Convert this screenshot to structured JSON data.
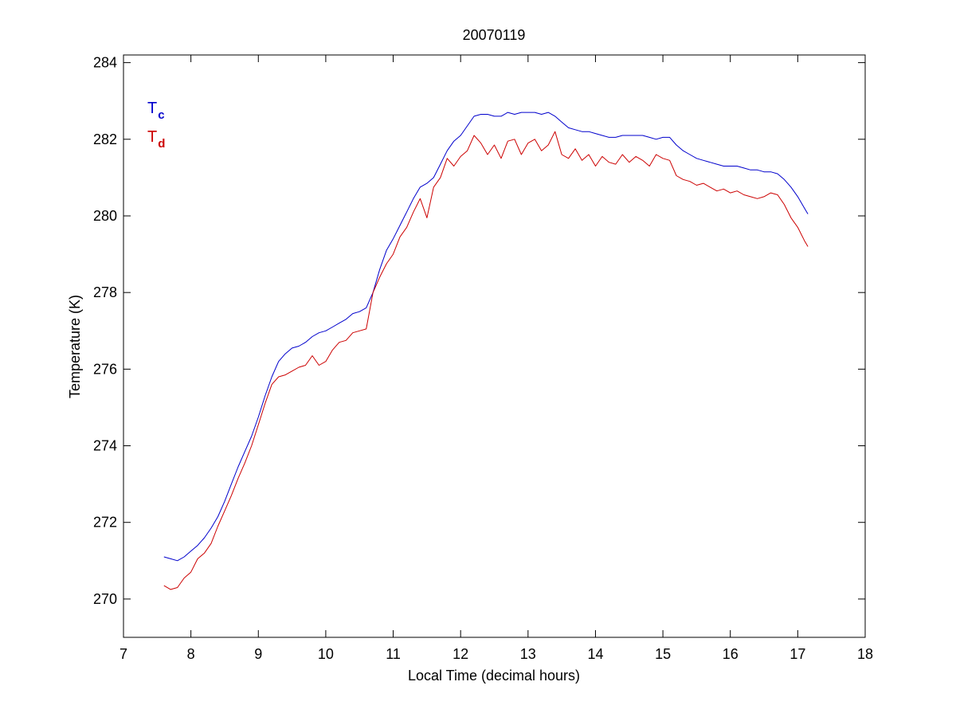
{
  "chart_data": {
    "type": "line",
    "title": "20070119",
    "xlabel": "Local Time (decimal hours)",
    "ylabel": "Temperature (K)",
    "xlim": [
      7,
      18
    ],
    "ylim": [
      269,
      284.2
    ],
    "xticks": [
      7,
      8,
      9,
      10,
      11,
      12,
      13,
      14,
      15,
      16,
      17,
      18
    ],
    "yticks": [
      270,
      272,
      274,
      276,
      278,
      280,
      282,
      284
    ],
    "grid": false,
    "legend_position": "top-left",
    "series": [
      {
        "name": "T",
        "name_sub": "c",
        "color": "#0000cc",
        "x": [
          7.6,
          7.7,
          7.8,
          7.9,
          8.0,
          8.1,
          8.2,
          8.3,
          8.4,
          8.5,
          8.6,
          8.7,
          8.8,
          8.9,
          9.0,
          9.1,
          9.2,
          9.3,
          9.4,
          9.5,
          9.6,
          9.7,
          9.8,
          9.9,
          10.0,
          10.1,
          10.2,
          10.3,
          10.4,
          10.5,
          10.6,
          10.7,
          10.8,
          10.9,
          11.0,
          11.1,
          11.2,
          11.3,
          11.4,
          11.5,
          11.6,
          11.7,
          11.8,
          11.9,
          12.0,
          12.1,
          12.2,
          12.3,
          12.4,
          12.5,
          12.6,
          12.7,
          12.8,
          12.9,
          13.0,
          13.1,
          13.2,
          13.3,
          13.4,
          13.5,
          13.6,
          13.7,
          13.8,
          13.9,
          14.0,
          14.1,
          14.2,
          14.3,
          14.4,
          14.5,
          14.6,
          14.7,
          14.8,
          14.9,
          15.0,
          15.1,
          15.2,
          15.3,
          15.4,
          15.5,
          15.6,
          15.7,
          15.8,
          15.9,
          16.0,
          16.1,
          16.2,
          16.3,
          16.4,
          16.5,
          16.6,
          16.7,
          16.8,
          16.9,
          17.0,
          17.1,
          17.15
        ],
        "y": [
          271.1,
          271.05,
          271.0,
          271.1,
          271.25,
          271.4,
          271.6,
          271.85,
          272.15,
          272.55,
          273.0,
          273.45,
          273.85,
          274.25,
          274.75,
          275.3,
          275.8,
          276.2,
          276.4,
          276.55,
          276.6,
          276.7,
          276.85,
          276.95,
          277.0,
          277.1,
          277.2,
          277.3,
          277.45,
          277.5,
          277.6,
          278.0,
          278.6,
          279.1,
          279.4,
          279.75,
          280.1,
          280.45,
          280.75,
          280.85,
          281.0,
          281.35,
          281.7,
          281.95,
          282.1,
          282.35,
          282.6,
          282.65,
          282.65,
          282.6,
          282.6,
          282.7,
          282.65,
          282.7,
          282.7,
          282.7,
          282.65,
          282.7,
          282.6,
          282.45,
          282.3,
          282.25,
          282.2,
          282.2,
          282.15,
          282.1,
          282.05,
          282.05,
          282.1,
          282.1,
          282.1,
          282.1,
          282.05,
          282.0,
          282.05,
          282.05,
          281.85,
          281.7,
          281.6,
          281.5,
          281.45,
          281.4,
          281.35,
          281.3,
          281.3,
          281.3,
          281.25,
          281.2,
          281.2,
          281.15,
          281.15,
          281.1,
          280.95,
          280.75,
          280.5,
          280.2,
          280.05
        ]
      },
      {
        "name": "T",
        "name_sub": "d",
        "color": "#cc0000",
        "x": [
          7.6,
          7.7,
          7.8,
          7.9,
          8.0,
          8.1,
          8.2,
          8.3,
          8.4,
          8.5,
          8.6,
          8.7,
          8.8,
          8.9,
          9.0,
          9.1,
          9.2,
          9.3,
          9.4,
          9.5,
          9.6,
          9.7,
          9.8,
          9.9,
          10.0,
          10.1,
          10.2,
          10.3,
          10.4,
          10.5,
          10.6,
          10.7,
          10.8,
          10.9,
          11.0,
          11.1,
          11.2,
          11.3,
          11.4,
          11.5,
          11.6,
          11.7,
          11.8,
          11.9,
          12.0,
          12.1,
          12.2,
          12.3,
          12.4,
          12.5,
          12.6,
          12.7,
          12.8,
          12.9,
          13.0,
          13.1,
          13.2,
          13.3,
          13.4,
          13.5,
          13.6,
          13.7,
          13.8,
          13.9,
          14.0,
          14.1,
          14.2,
          14.3,
          14.4,
          14.5,
          14.6,
          14.7,
          14.8,
          14.9,
          15.0,
          15.1,
          15.2,
          15.3,
          15.4,
          15.5,
          15.6,
          15.7,
          15.8,
          15.9,
          16.0,
          16.1,
          16.2,
          16.3,
          16.4,
          16.5,
          16.6,
          16.7,
          16.8,
          16.9,
          17.0,
          17.1,
          17.15
        ],
        "y": [
          270.35,
          270.25,
          270.3,
          270.55,
          270.7,
          271.05,
          271.2,
          271.45,
          271.9,
          272.3,
          272.7,
          273.15,
          273.55,
          274.0,
          274.55,
          275.1,
          275.6,
          275.8,
          275.85,
          275.95,
          276.05,
          276.1,
          276.35,
          276.1,
          276.2,
          276.5,
          276.7,
          276.75,
          276.95,
          277.0,
          277.05,
          278.0,
          278.4,
          278.75,
          279.0,
          279.45,
          279.7,
          280.1,
          280.45,
          279.95,
          280.75,
          281.0,
          281.5,
          281.3,
          281.55,
          281.7,
          282.1,
          281.9,
          281.6,
          281.85,
          281.5,
          281.95,
          282.0,
          281.6,
          281.9,
          282.0,
          281.7,
          281.85,
          282.2,
          281.6,
          281.5,
          281.75,
          281.45,
          281.6,
          281.3,
          281.55,
          281.4,
          281.35,
          281.6,
          281.4,
          281.55,
          281.45,
          281.3,
          281.6,
          281.5,
          281.45,
          281.05,
          280.95,
          280.9,
          280.8,
          280.85,
          280.75,
          280.65,
          280.7,
          280.6,
          280.65,
          280.55,
          280.5,
          280.45,
          280.5,
          280.6,
          280.55,
          280.3,
          279.95,
          279.7,
          279.35,
          279.2
        ]
      }
    ]
  }
}
